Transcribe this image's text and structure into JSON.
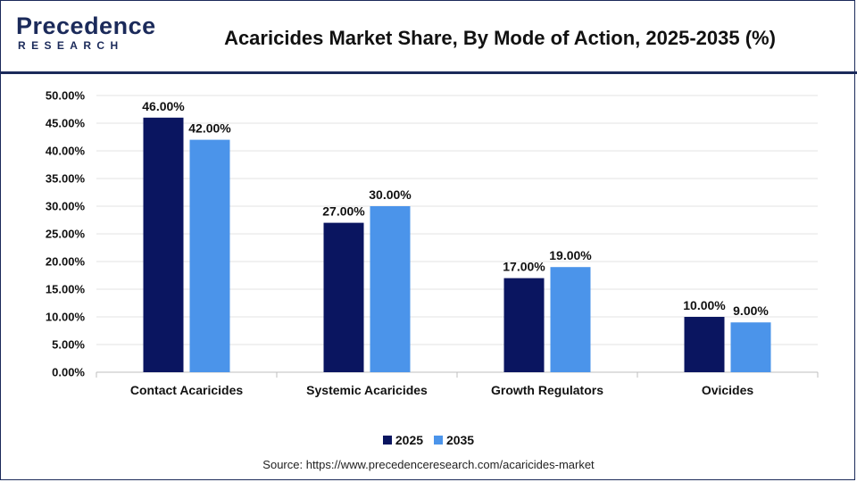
{
  "brand": {
    "logo_main": "Precedence",
    "logo_sub": "RESEARCH",
    "color": "#1b2a5a"
  },
  "title": "Acaricides Market Share, By Mode of Action, 2025-2035 (%)",
  "source": "Source: https://www.precedenceresearch.com/acaricides-market",
  "chart_data": {
    "type": "bar",
    "title": "Acaricides Market Share, By Mode of Action, 2025-2035 (%)",
    "xlabel": "",
    "ylabel": "",
    "categories": [
      "Contact Acaricides",
      "Systemic Acaricides",
      "Growth Regulators",
      "Ovicides"
    ],
    "series": [
      {
        "name": "2025",
        "values": [
          46,
          27,
          17,
          10
        ],
        "labels": [
          "46.00%",
          "27.00%",
          "17.00%",
          "10.00%"
        ],
        "color": "#0a1560"
      },
      {
        "name": "2035",
        "values": [
          42,
          30,
          19,
          9
        ],
        "labels": [
          "42.00%",
          "30.00%",
          "19.00%",
          "9.00%"
        ],
        "color": "#4b94ea"
      }
    ],
    "ylim": [
      0,
      50
    ],
    "yticks": [
      "0.00%",
      "5.00%",
      "10.00%",
      "15.00%",
      "20.00%",
      "25.00%",
      "30.00%",
      "35.00%",
      "40.00%",
      "45.00%",
      "50.00%"
    ],
    "grid": true,
    "legend_position": "bottom"
  }
}
